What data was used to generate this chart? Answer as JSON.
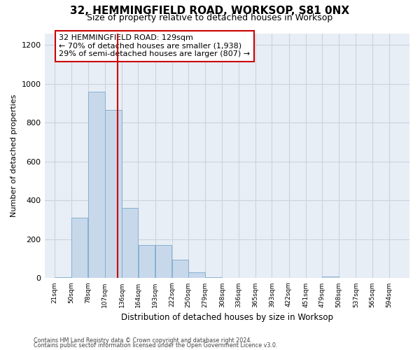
{
  "title_line1": "32, HEMMINGFIELD ROAD, WORKSOP, S81 0NX",
  "title_line2": "Size of property relative to detached houses in Worksop",
  "xlabel": "Distribution of detached houses by size in Worksop",
  "ylabel": "Number of detached properties",
  "bar_edges": [
    21,
    50,
    78,
    107,
    136,
    164,
    193,
    222,
    250,
    279,
    308,
    336,
    365,
    393,
    422,
    451,
    479,
    508,
    537,
    565,
    594
  ],
  "bar_heights": [
    5,
    310,
    960,
    865,
    360,
    170,
    170,
    95,
    30,
    5,
    0,
    0,
    0,
    0,
    0,
    0,
    10,
    0,
    0,
    0,
    0
  ],
  "bar_color": "#c8d8eb",
  "bar_edge_color": "#7aabcc",
  "grid_color": "#c8d4e0",
  "background_color": "#e8eef5",
  "vline_x": 129,
  "vline_color": "#cc0000",
  "annotation_text": "32 HEMMINGFIELD ROAD: 129sqm\n← 70% of detached houses are smaller (1,938)\n29% of semi-detached houses are larger (807) →",
  "annotation_box_color": "#ffffff",
  "annotation_box_edge_color": "#cc0000",
  "ylim": [
    0,
    1260
  ],
  "yticks": [
    0,
    200,
    400,
    600,
    800,
    1000,
    1200
  ],
  "footer_line1": "Contains HM Land Registry data © Crown copyright and database right 2024.",
  "footer_line2": "Contains public sector information licensed under the Open Government Licence v3.0."
}
